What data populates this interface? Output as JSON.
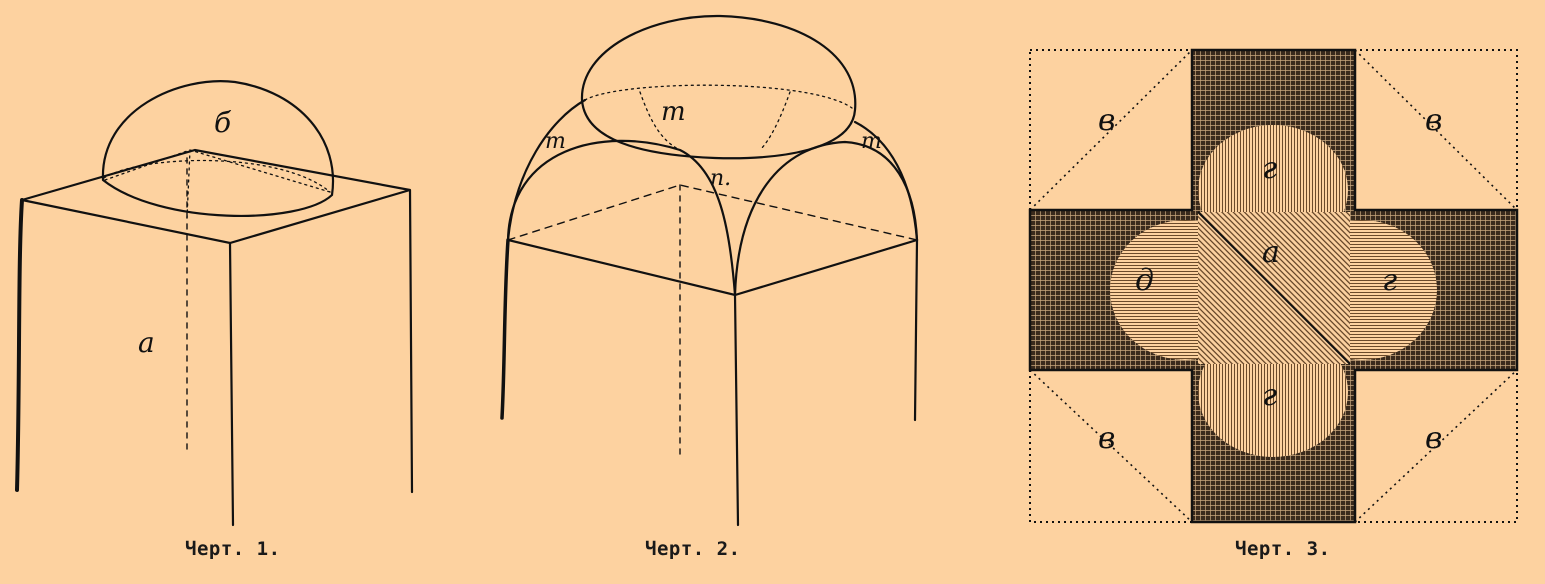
{
  "figures": [
    {
      "id": "fig1",
      "caption": "Черт. 1.",
      "labels": {
        "dome": "б",
        "pillar": "а"
      }
    },
    {
      "id": "fig2",
      "caption": "Черт. 2.",
      "labels": {
        "top": "m",
        "left": "m",
        "right": "m",
        "center": "n."
      }
    },
    {
      "id": "fig3",
      "caption": "Черт. 3.",
      "labels": {
        "corner_tl": "в",
        "corner_tr": "в",
        "corner_bl": "в",
        "corner_br": "в",
        "top": "г",
        "bottom": "г",
        "left": "д",
        "right": "г",
        "center": "а"
      }
    }
  ],
  "colors": {
    "background": "#fdd2a0",
    "ink": "#111111"
  }
}
